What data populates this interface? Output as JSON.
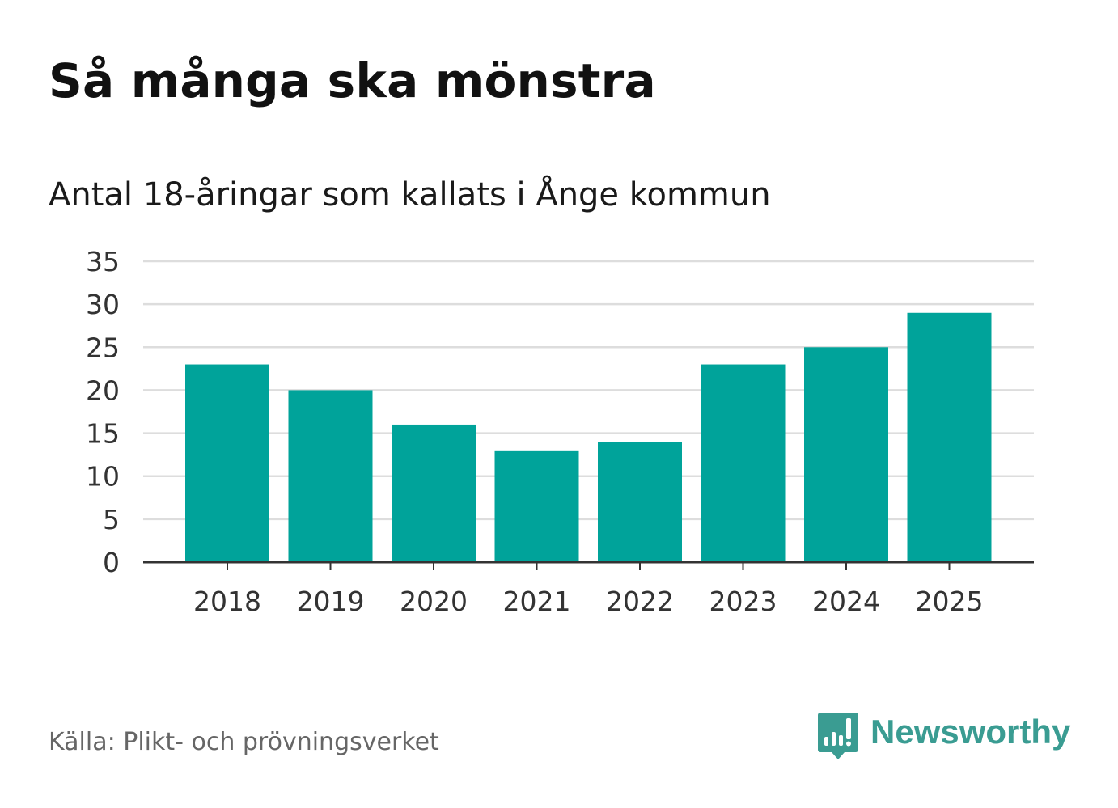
{
  "header": {
    "title": "Så många ska mönstra",
    "subtitle": "Antal 18-åringar som kallats i Ånge kommun"
  },
  "footer": {
    "source": "Källa: Plikt- och prövningsverket",
    "brand_name": "Newsworthy",
    "brand_icon": "newsworthy-chart-bubble-icon"
  },
  "colors": {
    "bar": "#00A39A",
    "grid": "#dddddd",
    "axis": "#333333",
    "brand": "#3a9c92"
  },
  "chart_data": {
    "type": "bar",
    "title": "Så många ska mönstra",
    "subtitle": "Antal 18-åringar som kallats i Ånge kommun",
    "categories": [
      "2018",
      "2019",
      "2020",
      "2021",
      "2022",
      "2023",
      "2024",
      "2025"
    ],
    "values": [
      23,
      20,
      16,
      13,
      14,
      23,
      25,
      29
    ],
    "yticks": [
      0,
      5,
      10,
      15,
      20,
      25,
      30,
      35
    ],
    "ylim": [
      0,
      35
    ],
    "xlabel": "",
    "ylabel": "",
    "grid": true,
    "legend": "none"
  }
}
